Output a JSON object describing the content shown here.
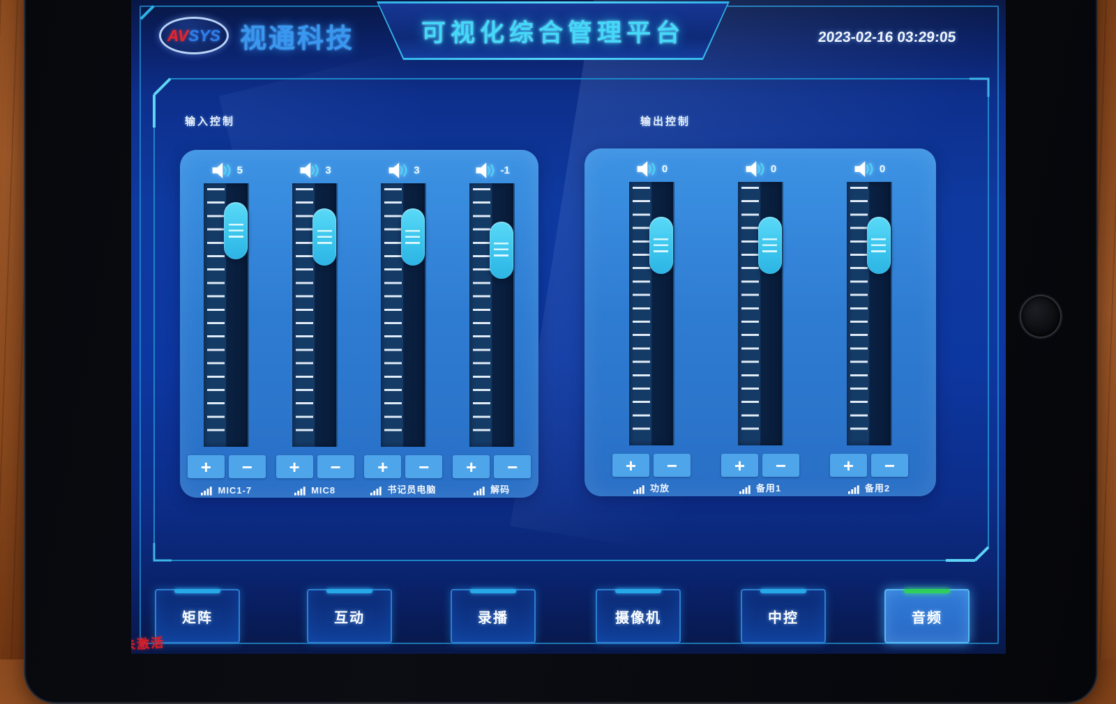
{
  "header": {
    "brand": {
      "av": "AV",
      "sys": "SYS",
      "company": "视通科技"
    },
    "title": "可视化综合管理平台",
    "timestamp": "2023-02-16 03:29:05"
  },
  "panels": {
    "input": {
      "label": "输入控制",
      "channels": [
        {
          "name": "MIC1-7",
          "value": "5"
        },
        {
          "name": "MIC8",
          "value": "3"
        },
        {
          "name": "书记员电脑",
          "value": "3"
        },
        {
          "name": "解码",
          "value": "-1"
        }
      ]
    },
    "output": {
      "label": "输出控制",
      "channels": [
        {
          "name": "功放",
          "value": "0"
        },
        {
          "name": "备用1",
          "value": "0"
        },
        {
          "name": "备用2",
          "value": "0"
        }
      ]
    }
  },
  "fader_controls": {
    "increase": "+",
    "decrease": "−"
  },
  "nav": {
    "items": [
      {
        "label": "矩阵",
        "active": false
      },
      {
        "label": "互动",
        "active": false
      },
      {
        "label": "录播",
        "active": false
      },
      {
        "label": "摄像机",
        "active": false
      },
      {
        "label": "中控",
        "active": false
      },
      {
        "label": "音频",
        "active": true
      }
    ]
  },
  "status": {
    "corner_text": "未激活"
  },
  "colors": {
    "accent_cyan": "#35d4f5",
    "active_green": "#2ecf5a",
    "panel_blue": "#2e7ed2",
    "thumb_cyan": "#3fc9ef",
    "brand_red": "#e5252c",
    "brand_blue": "#2f7fe8",
    "alert_red": "#d81f28"
  }
}
